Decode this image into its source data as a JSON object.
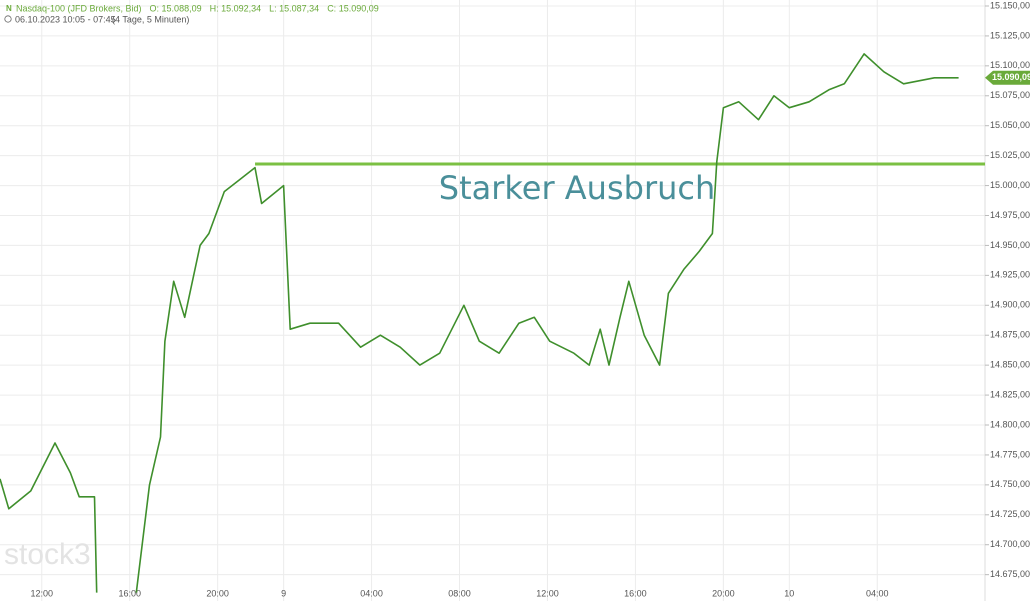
{
  "chart_data": {
    "type": "line",
    "title": "Nasdaq-100 (JFD Brokers, Bid)",
    "ohlc": [
      "O: 15.088,09",
      "H: 15.092,34",
      "L: 15.087,34",
      "C: 15.090,09"
    ],
    "subtitle": "06.10.2023 10:05 - 07:45",
    "period": "(4 Tage, 5 Minuten)",
    "watermark": "stock3",
    "color": "#3f8f2c",
    "grid": true,
    "x": [
      -1.9,
      -1.5,
      -0.5,
      0.6,
      1.3,
      1.7,
      2.4,
      2.5,
      3.4,
      4.3,
      4.9,
      5.4,
      5.6,
      6.0,
      6.5,
      7.2,
      7.6,
      8.3,
      9.0,
      9.7,
      10.0,
      11.0,
      11.3,
      12.2,
      13.5,
      14.5,
      15.4,
      16.3,
      17.2,
      18.1,
      19.2,
      19.9,
      20.8,
      21.7,
      22.4,
      23.1,
      24.2,
      24.9,
      25.4,
      25.8,
      26.3,
      26.7,
      27.4,
      28.1,
      28.5,
      29.2,
      29.9,
      30.5,
      30.7,
      31.0,
      31.7,
      32.6,
      33.3,
      34.0,
      34.9,
      35.8,
      36.5,
      37.4,
      38.3,
      39.2,
      40.6,
      41.7
    ],
    "values": [
      14755,
      14730,
      14745,
      14785,
      14760,
      14740,
      14740,
      14660,
      null,
      14660,
      14750,
      14790,
      14870,
      14920,
      14890,
      14950,
      14960,
      14995,
      15005,
      15015,
      14985,
      15000,
      14880,
      14885,
      14885,
      14865,
      14875,
      14865,
      14850,
      14860,
      14900,
      14870,
      14860,
      14885,
      14890,
      14870,
      14860,
      14850,
      14880,
      14850,
      14890,
      14920,
      14875,
      14850,
      14910,
      14930,
      14945,
      14960,
      15020,
      15065,
      15070,
      15055,
      15075,
      15065,
      15070,
      15080,
      15085,
      15110,
      15095,
      15085,
      15090,
      15090
    ],
    "xlim": [
      -1.9,
      42.9
    ],
    "ylim": [
      14653,
      15155
    ],
    "xticks": [
      {
        "value": 0,
        "label": "12:00"
      },
      {
        "value": 4,
        "label": "16:00"
      },
      {
        "value": 8,
        "label": "20:00"
      },
      {
        "value": 11,
        "label": "9"
      },
      {
        "value": 15,
        "label": "04:00"
      },
      {
        "value": 19,
        "label": "08:00"
      },
      {
        "value": 23,
        "label": "12:00"
      },
      {
        "value": 27,
        "label": "16:00"
      },
      {
        "value": 31,
        "label": "20:00"
      },
      {
        "value": 34,
        "label": "10"
      },
      {
        "value": 38,
        "label": "04:00"
      }
    ],
    "yticks": [
      {
        "value": 14675,
        "label": "14.675,00"
      },
      {
        "value": 14700,
        "label": "14.700,00"
      },
      {
        "value": 14725,
        "label": "14.725,00"
      },
      {
        "value": 14750,
        "label": "14.750,00"
      },
      {
        "value": 14775,
        "label": "14.775,00"
      },
      {
        "value": 14800,
        "label": "14.800,00"
      },
      {
        "value": 14825,
        "label": "14.825,00"
      },
      {
        "value": 14850,
        "label": "14.850,00"
      },
      {
        "value": 14875,
        "label": "14.875,00"
      },
      {
        "value": 14900,
        "label": "14.900,00"
      },
      {
        "value": 14925,
        "label": "14.925,00"
      },
      {
        "value": 14950,
        "label": "14.950,00"
      },
      {
        "value": 14975,
        "label": "14.975,00"
      },
      {
        "value": 15000,
        "label": "15.000,00"
      },
      {
        "value": 15025,
        "label": "15.025,00"
      },
      {
        "value": 15050,
        "label": "15.050,00"
      },
      {
        "value": 15075,
        "label": "15.075,00"
      },
      {
        "value": 15100,
        "label": "15.100,00"
      },
      {
        "value": 15125,
        "label": "15.125,00"
      },
      {
        "value": 15150,
        "label": "15.150,00"
      }
    ],
    "last_price": {
      "value": 15090.09,
      "label": "15.090,09"
    },
    "annotation": {
      "text": "Starker Ausbruch",
      "y": 15018,
      "x_start": 9.7,
      "color": "#7bc043"
    }
  }
}
